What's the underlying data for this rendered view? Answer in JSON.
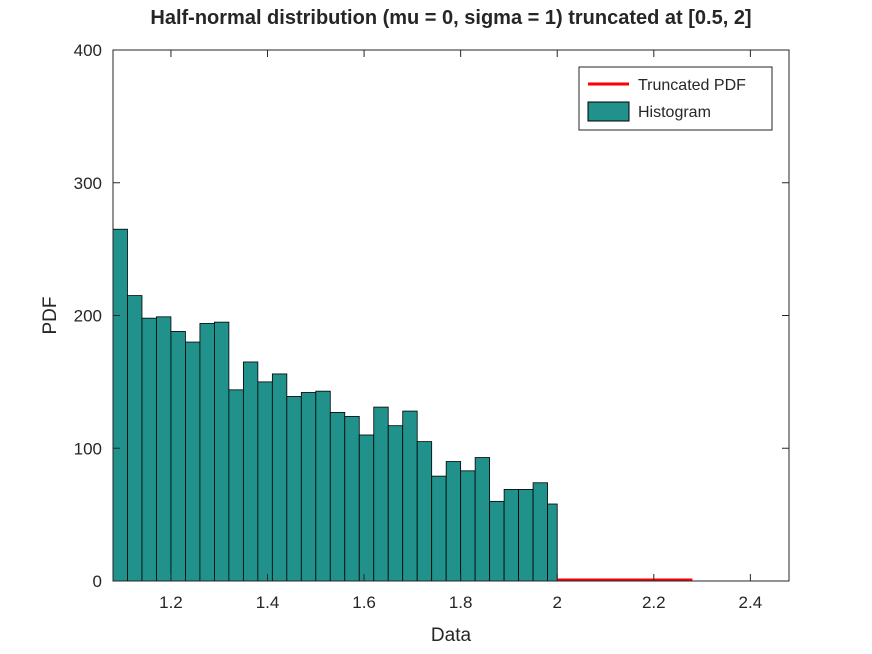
{
  "chart_data": {
    "type": "bar",
    "title": "Half-normal distribution (mu = 0, sigma = 1) truncated at [0.5, 2]",
    "xlabel": "Data",
    "ylabel": "PDF",
    "xlim": [
      1.08,
      2.48
    ],
    "ylim": [
      0,
      400
    ],
    "xticks": [
      1.2,
      1.4,
      1.6,
      1.8,
      2,
      2.2,
      2.4
    ],
    "xtick_labels": [
      "1.2",
      "1.4",
      "1.6",
      "1.8",
      "2",
      "2.2",
      "2.4"
    ],
    "yticks": [
      0,
      100,
      200,
      300,
      400
    ],
    "ytick_labels": [
      "0",
      "100",
      "200",
      "300",
      "400"
    ],
    "grid": false,
    "legend_position": "top-right",
    "series": [
      {
        "name": "Histogram",
        "kind": "histogram",
        "color": "#21918c",
        "bin_edges": [
          1.08,
          1.11,
          1.14,
          1.17,
          1.2,
          1.23,
          1.26,
          1.29,
          1.32,
          1.35,
          1.38,
          1.41,
          1.44,
          1.47,
          1.5,
          1.53,
          1.56,
          1.59,
          1.62,
          1.65,
          1.68,
          1.71,
          1.74,
          1.77,
          1.8,
          1.83,
          1.86,
          1.89,
          1.92,
          1.95,
          1.98,
          2.0
        ],
        "values": [
          265,
          215,
          198,
          199,
          188,
          180,
          194,
          195,
          144,
          165,
          150,
          156,
          139,
          142,
          143,
          127,
          124,
          110,
          131,
          117,
          128,
          105,
          79,
          90,
          83,
          93,
          60,
          69,
          69,
          74,
          58
        ]
      },
      {
        "name": "Truncated PDF",
        "kind": "line",
        "color": "#ff0000",
        "x": [
          2.0,
          2.28
        ],
        "y": [
          0,
          0
        ]
      }
    ]
  }
}
